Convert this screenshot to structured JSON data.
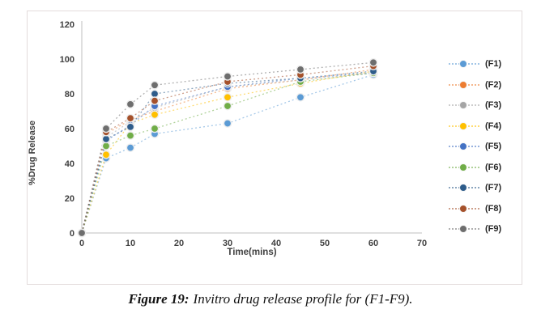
{
  "caption": {
    "prefix": "Figure 19:",
    "text": "Invitro drug release profile for (F1-F9)."
  },
  "chart_data": {
    "type": "scatter",
    "line_style": "dotted",
    "marker": "circle",
    "x": [
      0,
      5,
      10,
      15,
      30,
      45,
      60
    ],
    "series": [
      {
        "name": "(F1)",
        "color": "#5B9BD5",
        "values": [
          0,
          43,
          49,
          57,
          63,
          78,
          91
        ]
      },
      {
        "name": "(F2)",
        "color": "#ED7D31",
        "values": [
          0,
          57,
          65,
          70,
          83,
          88,
          94
        ]
      },
      {
        "name": "(F3)",
        "color": "#A5A5A5",
        "values": [
          0,
          55,
          64,
          72,
          84,
          88,
          92
        ]
      },
      {
        "name": "(F4)",
        "color": "#FFC000",
        "values": [
          0,
          45,
          63,
          68,
          78,
          86,
          93
        ]
      },
      {
        "name": "(F5)",
        "color": "#4472C4",
        "values": [
          0,
          53,
          62,
          73,
          84,
          89,
          92
        ]
      },
      {
        "name": "(F6)",
        "color": "#70AD47",
        "values": [
          0,
          50,
          56,
          60,
          73,
          87,
          92
        ]
      },
      {
        "name": "(F7)",
        "color": "#2E5C8A",
        "values": [
          0,
          54,
          61,
          80,
          86,
          89,
          93
        ]
      },
      {
        "name": "(F8)",
        "color": "#A5512B",
        "values": [
          0,
          58,
          66,
          76,
          87,
          91,
          96
        ]
      },
      {
        "name": "(F9)",
        "color": "#6E6E6E",
        "values": [
          0,
          60,
          74,
          85,
          90,
          94,
          98
        ]
      }
    ],
    "title": "",
    "xlabel": "Time(mins)",
    "ylabel": "%Drug Release",
    "xlim": [
      0,
      70
    ],
    "ylim": [
      0,
      120
    ],
    "x_ticks": [
      0,
      10,
      20,
      30,
      40,
      50,
      60,
      70
    ],
    "y_ticks": [
      0,
      20,
      40,
      60,
      80,
      100,
      120
    ],
    "legend_position": "right",
    "grid": false,
    "axis_color": "#bfbfbf",
    "tick_label_color": "#404040"
  }
}
